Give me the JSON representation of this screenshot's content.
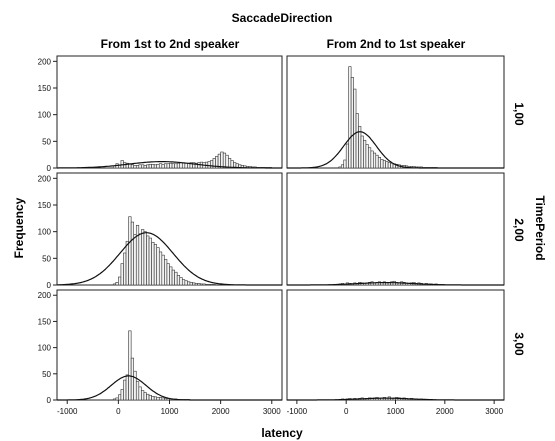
{
  "chart_data": {
    "type": "histogram-grid",
    "title": "SaccadeDirection",
    "column_labels": [
      "From 1st to 2nd speaker",
      "From 2nd to 1st speaker"
    ],
    "row_panel_title": "TimePeriod",
    "row_labels": [
      "1,00",
      "2,00",
      "3,00"
    ],
    "xlabel": "latency",
    "ylabel": "Frequency",
    "xlim": [
      -1200,
      3200
    ],
    "ylim": [
      0,
      210
    ],
    "x_ticks": [
      -1000,
      0,
      1000,
      2000,
      3000
    ],
    "y_ticks": [
      0,
      50,
      100,
      150,
      200
    ],
    "bin_width": 50,
    "panels": [
      {
        "row": 0,
        "col": 0,
        "bin_start": -100,
        "values": [
          4,
          8,
          6,
          14,
          10,
          9,
          8,
          6,
          5,
          5,
          6,
          6,
          5,
          6,
          7,
          7,
          6,
          7,
          8,
          7,
          8,
          8,
          9,
          8,
          8,
          9,
          10,
          9,
          9,
          9,
          10,
          10,
          9,
          10,
          11,
          10,
          11,
          12,
          14,
          18,
          22,
          26,
          30,
          28,
          24,
          18,
          14,
          10,
          8,
          6,
          5,
          4,
          3,
          3,
          2,
          2,
          1,
          1,
          1,
          1,
          1,
          1
        ],
        "curve": {
          "mean": 850,
          "sd": 650,
          "peak": 12
        }
      },
      {
        "row": 0,
        "col": 1,
        "bin_start": -150,
        "values": [
          2,
          6,
          15,
          45,
          190,
          170,
          148,
          102,
          78,
          60,
          52,
          44,
          38,
          32,
          28,
          24,
          20,
          16,
          14,
          12,
          10,
          9,
          8,
          7,
          6,
          5,
          5,
          4,
          3,
          3,
          3,
          2,
          2,
          2,
          1,
          1,
          1,
          1,
          1,
          1
        ],
        "curve": {
          "mean": 280,
          "sd": 330,
          "peak": 68
        }
      },
      {
        "row": 1,
        "col": 0,
        "bin_start": -100,
        "values": [
          2,
          5,
          15,
          40,
          60,
          82,
          128,
          118,
          95,
          112,
          96,
          104,
          100,
          92,
          88,
          80,
          76,
          70,
          62,
          56,
          48,
          40,
          34,
          28,
          24,
          18,
          14,
          10,
          8,
          6,
          5,
          4,
          3,
          3,
          2,
          2,
          1,
          1,
          1,
          1
        ],
        "curve": {
          "mean": 550,
          "sd": 520,
          "peak": 98
        }
      },
      {
        "row": 1,
        "col": 1,
        "bin_start": -200,
        "values": [
          1,
          2,
          3,
          2,
          4,
          3,
          2,
          4,
          3,
          5,
          4,
          3,
          4,
          5,
          6,
          4,
          5,
          6,
          5,
          6,
          4,
          5,
          6,
          7,
          5,
          4,
          6,
          5,
          4,
          3,
          4,
          5,
          3,
          4,
          3,
          2,
          3,
          2,
          2,
          1,
          2,
          1,
          1,
          1
        ],
        "curve": {
          "mean": 800,
          "sd": 550,
          "peak": 4.5
        }
      },
      {
        "row": 2,
        "col": 0,
        "bin_start": -100,
        "values": [
          2,
          4,
          10,
          20,
          38,
          48,
          132,
          80,
          55,
          35,
          25,
          18,
          14,
          11,
          9,
          7,
          6,
          5,
          5,
          4,
          3,
          3,
          2,
          2,
          2,
          1,
          1,
          1,
          1,
          1
        ],
        "curve": {
          "mean": 200,
          "sd": 340,
          "peak": 46
        }
      },
      {
        "row": 2,
        "col": 1,
        "bin_start": -150,
        "values": [
          1,
          2,
          1,
          2,
          3,
          2,
          3,
          2,
          3,
          4,
          2,
          3,
          4,
          3,
          4,
          5,
          3,
          4,
          5,
          4,
          6,
          3,
          4,
          5,
          4,
          3,
          4,
          3,
          2,
          3,
          2,
          2,
          1,
          2,
          1,
          1,
          1,
          1
        ],
        "curve": {
          "mean": 800,
          "sd": 520,
          "peak": 3.5
        }
      }
    ]
  }
}
